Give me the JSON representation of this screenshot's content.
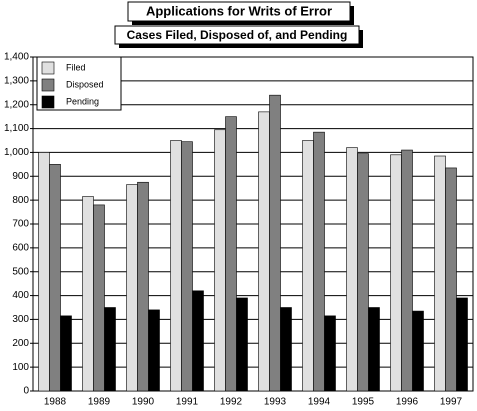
{
  "chart_data": {
    "type": "bar",
    "title": "Applications for Writs of Error",
    "subtitle": "Cases Filed, Disposed of, and Pending",
    "categories": [
      "1988",
      "1989",
      "1990",
      "1991",
      "1992",
      "1993",
      "1994",
      "1995",
      "1996",
      "1997"
    ],
    "series": [
      {
        "name": "Filed",
        "color": "#e0e0e0",
        "values": [
          1000,
          815,
          865,
          1050,
          1095,
          1170,
          1050,
          1020,
          990,
          985
        ]
      },
      {
        "name": "Disposed",
        "color": "#808080",
        "values": [
          950,
          780,
          875,
          1045,
          1150,
          1240,
          1085,
          995,
          1010,
          935
        ]
      },
      {
        "name": "Pending",
        "color": "#000000",
        "values": [
          315,
          350,
          340,
          420,
          390,
          350,
          315,
          350,
          335,
          390
        ]
      }
    ],
    "ylim": [
      0,
      1400
    ],
    "yticks": [
      0,
      100,
      200,
      300,
      400,
      500,
      600,
      700,
      800,
      900,
      {
        "value": 1000,
        "label": "1,000"
      },
      {
        "value": 1100,
        "label": "1,100"
      },
      {
        "value": 1200,
        "label": "1,200"
      },
      {
        "value": 1300,
        "label": "1,300"
      },
      {
        "value": 1400,
        "label": "1,400"
      }
    ],
    "grid": true,
    "legend": "top-left"
  }
}
